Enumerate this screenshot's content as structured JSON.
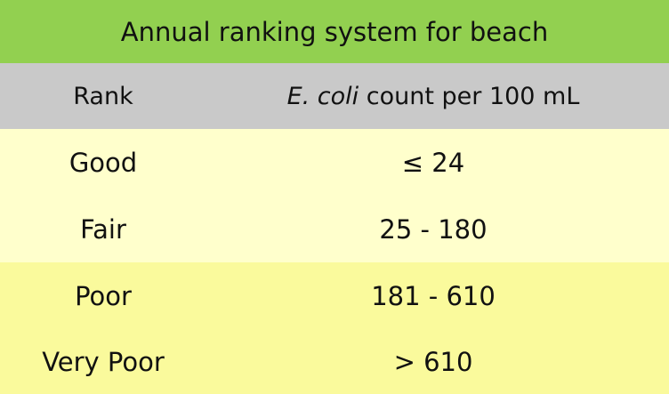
{
  "title": "Annual ranking system for beach",
  "header": {
    "rank": "Rank",
    "count_italic": "E. coli",
    "count_rest": " count per 100 mL"
  },
  "rows": [
    {
      "rank": "Good",
      "count": "≤ 24"
    },
    {
      "rank": "Fair",
      "count": "25 - 180"
    },
    {
      "rank": "Poor",
      "count": "181 - 610"
    },
    {
      "rank": "Very Poor",
      "count": "> 610"
    }
  ],
  "colors": {
    "title_bg": "#92d050",
    "header_bg": "#c9c9c9",
    "light_rows": "#ffffcc",
    "dark_rows": "#fafa9c"
  }
}
